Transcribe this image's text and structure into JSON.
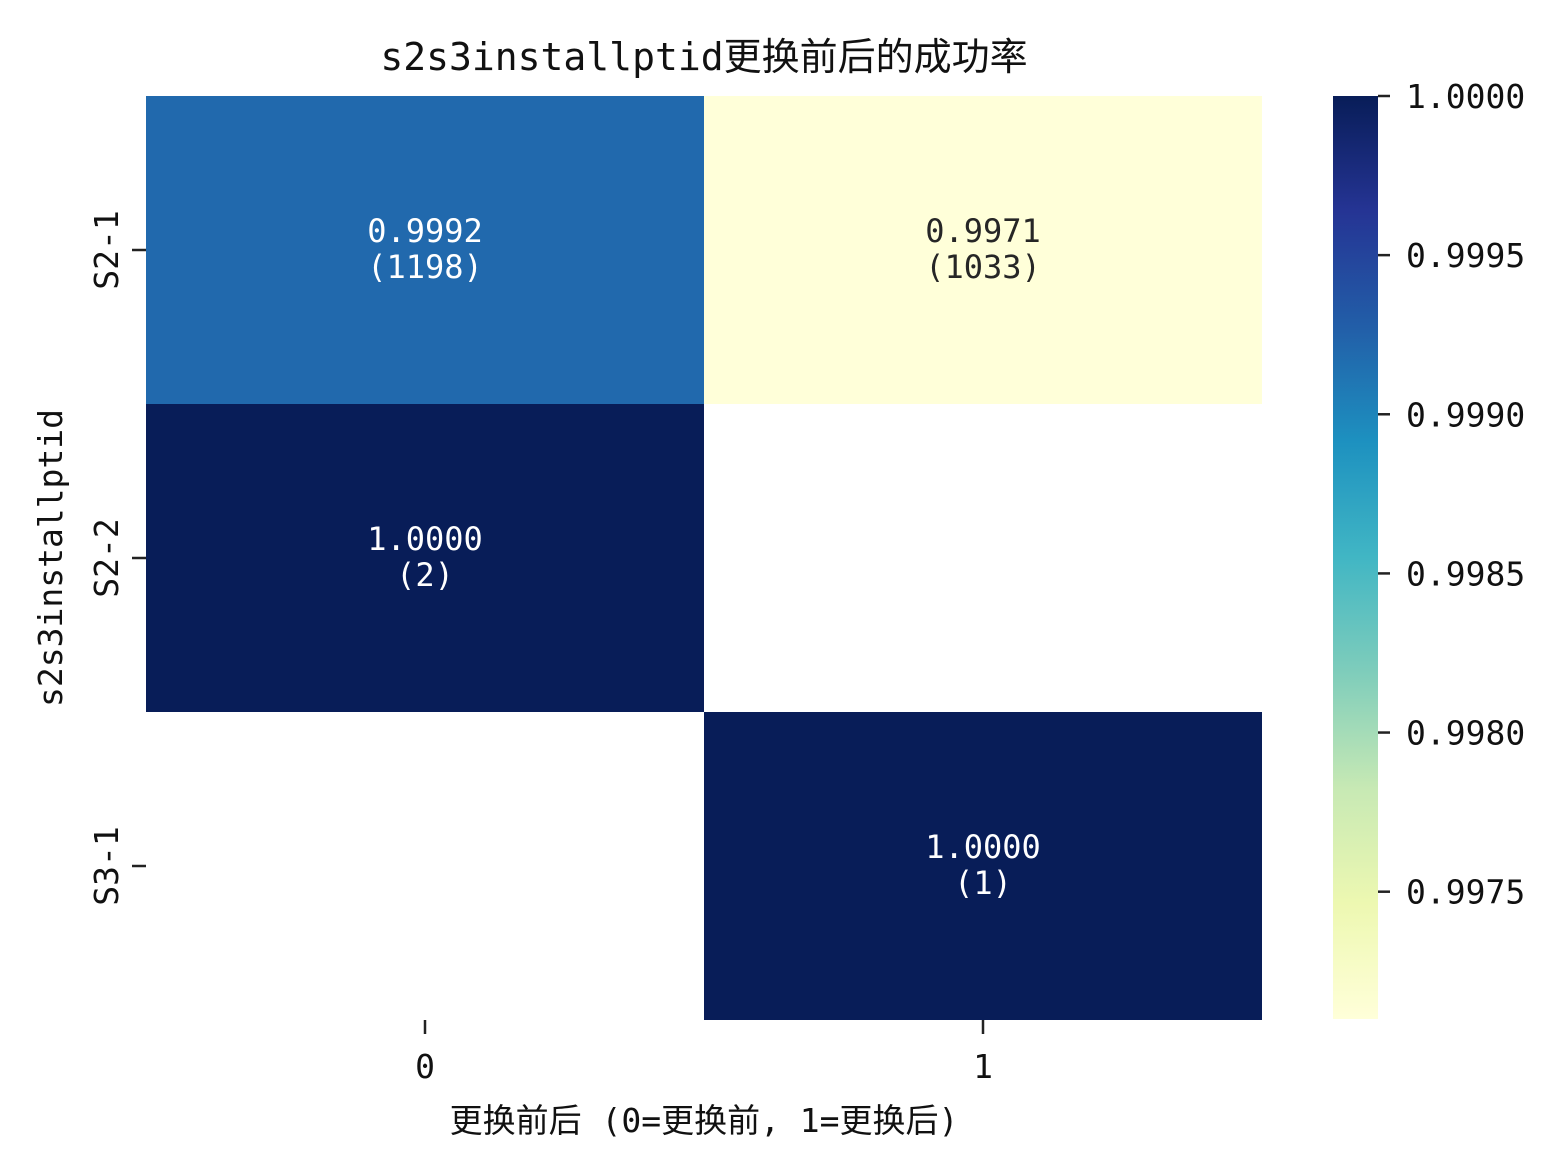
{
  "chart_data": {
    "type": "heatmap",
    "title": "s2s3installptid更换前后的成功率",
    "xlabel": "更换前后 (0=更换前, 1=更换后)",
    "ylabel": "s2s3installptid",
    "x_categories": [
      "0",
      "1"
    ],
    "y_categories": [
      "S2-1",
      "S2-2",
      "S3-1"
    ],
    "cells": [
      {
        "row": 0,
        "col": 0,
        "value": 0.9992,
        "label": "0.9992",
        "count": "(1198)"
      },
      {
        "row": 0,
        "col": 1,
        "value": 0.9971,
        "label": "0.9971",
        "count": "(1033)"
      },
      {
        "row": 1,
        "col": 0,
        "value": 1.0,
        "label": "1.0000",
        "count": "(2)"
      },
      {
        "row": 2,
        "col": 1,
        "value": 1.0,
        "label": "1.0000",
        "count": "(1)"
      }
    ],
    "colorbar": {
      "colormap": "YlGnBu",
      "min": 0.9971,
      "max": 1.0,
      "ticks": [
        1.0,
        0.9995,
        0.999,
        0.9985,
        0.998,
        0.9975
      ],
      "tick_labels": [
        "1.0000",
        "0.9995",
        "0.9990",
        "0.9985",
        "0.9980",
        "0.9975"
      ]
    },
    "colors": {
      "ylgnbu": [
        "#ffffd9",
        "#edf8b1",
        "#c7e9b4",
        "#7fcdbb",
        "#41b6c4",
        "#1d91c0",
        "#225ea8",
        "#253494",
        "#081d58"
      ],
      "text_dark": "#262626",
      "text_light": "#ffffff"
    }
  }
}
